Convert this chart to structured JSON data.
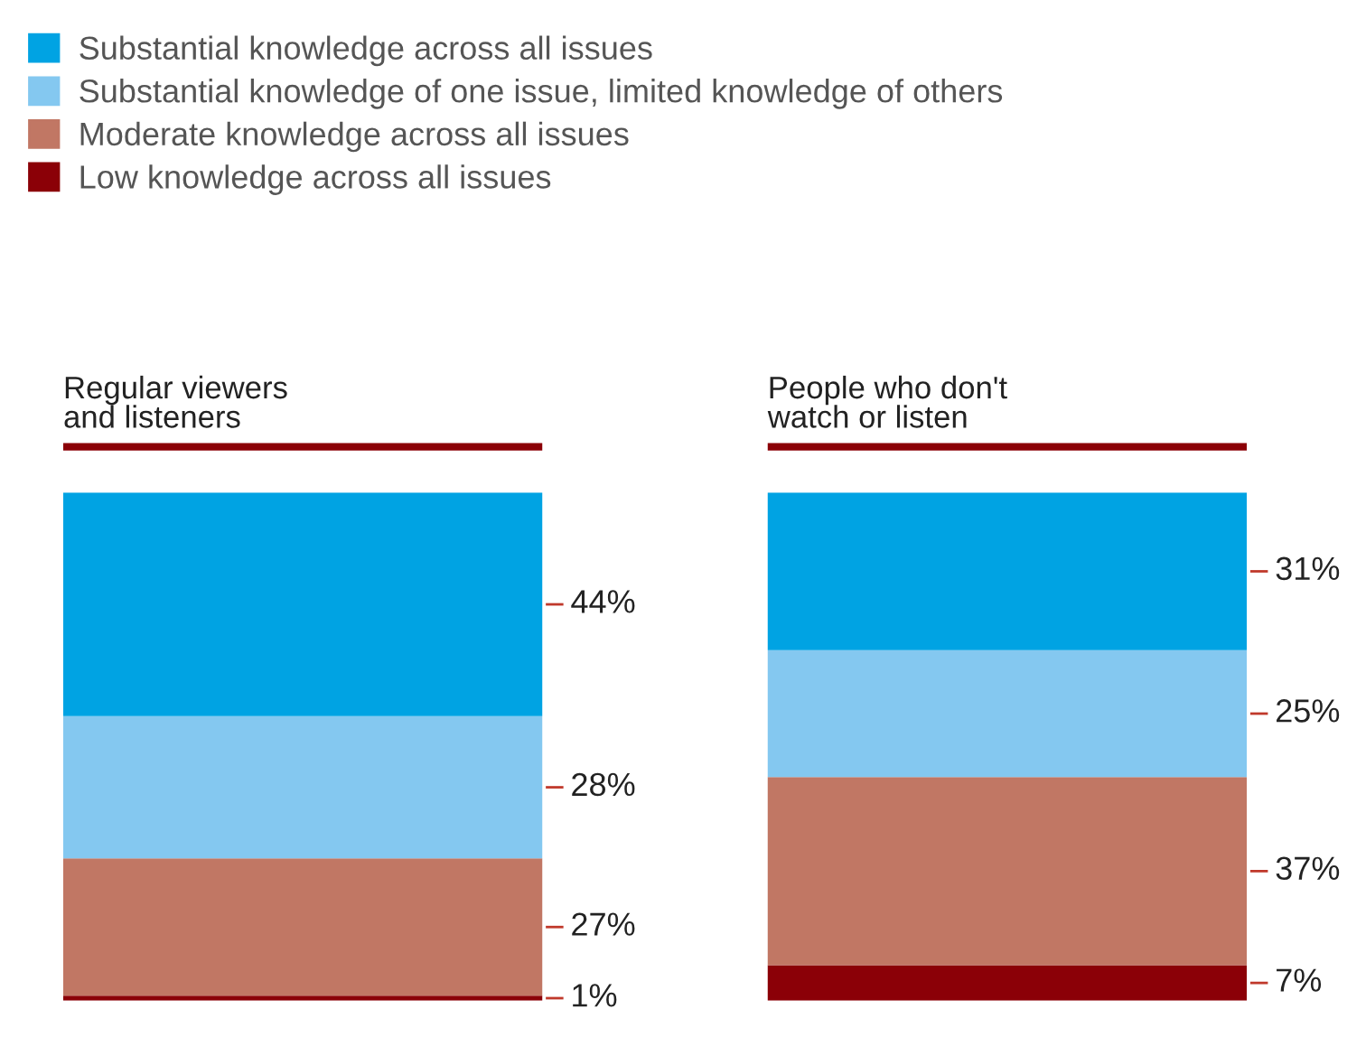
{
  "chart_data": {
    "type": "bar",
    "stacked": true,
    "categories": [
      "Regular viewers\nand listeners",
      "People who don't\nwatch or listen"
    ],
    "ylim": [
      0,
      100
    ],
    "legend": "top left",
    "series": [
      {
        "name": "Low knowledge across all issues",
        "color": "#8b0007",
        "values": [
          1,
          7
        ],
        "value_labels": [
          "1%",
          "7%"
        ]
      },
      {
        "name": "Moderate knowledge across all issues",
        "color": "#c17764",
        "values": [
          27,
          37
        ],
        "value_labels": [
          "27%",
          "37%"
        ]
      },
      {
        "name": "Substantial knowledge of one issue, limited knowledge of others",
        "color": "#84c8f0",
        "values": [
          28,
          25
        ],
        "value_labels": [
          "28%",
          "25%"
        ]
      },
      {
        "name": "Substantial knowledge across all issues",
        "color": "#00a3e3",
        "values": [
          44,
          31
        ],
        "value_labels": [
          "44%",
          "31%"
        ]
      }
    ]
  }
}
